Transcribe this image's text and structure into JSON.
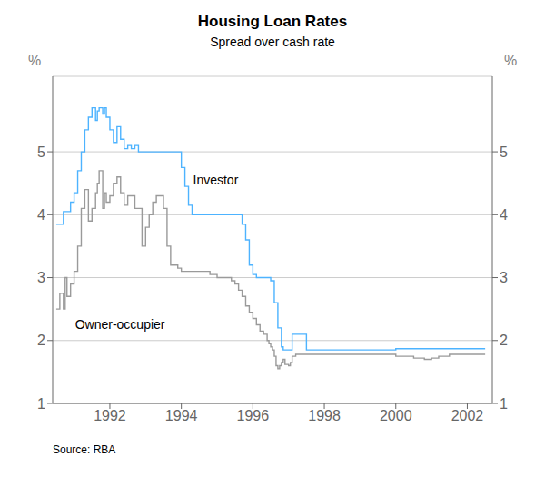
{
  "chart_data": {
    "type": "line",
    "title": "Housing Loan Rates",
    "subtitle": "Spread over cash rate",
    "source": "Source: RBA",
    "ylabel": "%",
    "y2label": "%",
    "xlim": [
      1990.4,
      2002.7
    ],
    "xticks": [
      1992,
      1994,
      1996,
      1998,
      2000,
      2002
    ],
    "ylim": [
      1,
      6.2
    ],
    "yticks": [
      1,
      2,
      3,
      4,
      5
    ],
    "y2lim": [
      1,
      6.2
    ],
    "y2ticks": [
      1,
      2,
      3,
      4,
      5
    ],
    "grid": true,
    "series": [
      {
        "color": "#4db3ff",
        "x": [
          1990.5,
          1990.5,
          1990.7,
          1990.7,
          1990.9,
          1990.9,
          1991.0,
          1991.0,
          1991.1,
          1991.1,
          1991.2,
          1991.2,
          1991.3,
          1991.3,
          1991.4,
          1991.4,
          1991.5,
          1991.5,
          1991.6,
          1991.6,
          1991.65,
          1991.65,
          1991.7,
          1991.7,
          1991.8,
          1991.8,
          1991.85,
          1991.85,
          1991.9,
          1991.9,
          1992.0,
          1992.0,
          1992.1,
          1992.1,
          1992.2,
          1992.2,
          1992.3,
          1992.3,
          1992.4,
          1992.4,
          1992.5,
          1992.5,
          1992.6,
          1992.6,
          1992.7,
          1992.7,
          1992.8,
          1992.8,
          1993.0,
          1993.0,
          1993.1,
          1993.1,
          1993.2,
          1993.2,
          1993.3,
          1993.3,
          1993.5,
          1993.5,
          1993.7,
          1993.7,
          1993.9,
          1993.9,
          1994.0,
          1994.0,
          1994.1,
          1994.1,
          1994.2,
          1994.2,
          1994.3,
          1994.3,
          1994.4,
          1994.4,
          1994.5,
          1994.5,
          1995.7,
          1995.7,
          1995.8,
          1995.8,
          1995.9,
          1995.9,
          1996.0,
          1996.0,
          1996.1,
          1996.1,
          1996.2,
          1996.2,
          1996.4,
          1996.4,
          1996.5,
          1996.5,
          1996.6,
          1996.6,
          1996.7,
          1996.7,
          1996.8,
          1996.8,
          1996.85,
          1996.85,
          1997.0,
          1997.0,
          1997.1,
          1997.1,
          1997.5,
          1997.5,
          1998.0,
          1998.0,
          1999.0,
          1999.0,
          2000.0,
          2000.0,
          2000.5,
          2000.5,
          2001.0,
          2001.0,
          2001.5,
          2001.5,
          2002.0,
          2002.0,
          2002.5
        ],
        "values": [
          3.85,
          3.85,
          3.85,
          4.05,
          4.05,
          4.2,
          4.2,
          4.35,
          4.35,
          4.7,
          4.7,
          5.0,
          5.0,
          5.35,
          5.35,
          5.55,
          5.55,
          5.7,
          5.7,
          5.5,
          5.5,
          5.65,
          5.65,
          5.7,
          5.7,
          5.6,
          5.6,
          5.7,
          5.7,
          5.55,
          5.55,
          5.35,
          5.35,
          5.15,
          5.15,
          5.4,
          5.4,
          5.2,
          5.2,
          5.05,
          5.05,
          5.1,
          5.1,
          5.05,
          5.05,
          5.1,
          5.1,
          5.0,
          5.0,
          5.0,
          5.0,
          5.0,
          5.0,
          5.0,
          5.0,
          5.0,
          5.0,
          5.0,
          5.0,
          5.0,
          5.0,
          5.0,
          5.0,
          4.75,
          4.75,
          4.45,
          4.45,
          4.15,
          4.15,
          4.0,
          4.0,
          4.0,
          4.0,
          4.0,
          4.0,
          3.85,
          3.85,
          3.6,
          3.6,
          3.2,
          3.2,
          3.05,
          3.05,
          3.0,
          3.0,
          3.0,
          3.0,
          3.0,
          3.0,
          2.95,
          2.95,
          2.6,
          2.6,
          2.2,
          2.2,
          1.9,
          1.9,
          1.85,
          1.85,
          1.85,
          1.85,
          2.1,
          2.1,
          1.85,
          1.85,
          1.85,
          1.85,
          1.85,
          1.85,
          1.87,
          1.87,
          1.87,
          1.87,
          1.87,
          1.87,
          1.87,
          1.87,
          1.87,
          1.87
        ]
      },
      {
        "color": "#9a9a9a",
        "x": [
          1990.5,
          1990.5,
          1990.6,
          1990.6,
          1990.7,
          1990.7,
          1990.75,
          1990.75,
          1990.8,
          1990.8,
          1990.9,
          1990.9,
          1991.0,
          1991.0,
          1991.1,
          1991.1,
          1991.2,
          1991.2,
          1991.3,
          1991.3,
          1991.4,
          1991.4,
          1991.5,
          1991.5,
          1991.6,
          1991.6,
          1991.65,
          1991.65,
          1991.7,
          1991.7,
          1991.8,
          1991.8,
          1991.85,
          1991.85,
          1991.9,
          1991.9,
          1992.0,
          1992.0,
          1992.1,
          1992.1,
          1992.2,
          1992.2,
          1992.3,
          1992.3,
          1992.4,
          1992.4,
          1992.5,
          1992.5,
          1992.7,
          1992.7,
          1992.9,
          1992.9,
          1993.0,
          1993.0,
          1993.1,
          1993.1,
          1993.2,
          1993.2,
          1993.3,
          1993.3,
          1993.5,
          1993.5,
          1993.6,
          1993.6,
          1993.7,
          1993.7,
          1993.9,
          1993.9,
          1994.0,
          1994.0,
          1994.2,
          1994.2,
          1994.4,
          1994.4,
          1994.6,
          1994.6,
          1994.8,
          1994.8,
          1995.0,
          1995.0,
          1995.2,
          1995.2,
          1995.4,
          1995.4,
          1995.5,
          1995.5,
          1995.6,
          1995.6,
          1995.7,
          1995.7,
          1995.8,
          1995.8,
          1995.9,
          1995.9,
          1996.0,
          1996.0,
          1996.1,
          1996.1,
          1996.2,
          1996.2,
          1996.3,
          1996.3,
          1996.4,
          1996.4,
          1996.45,
          1996.45,
          1996.5,
          1996.5,
          1996.55,
          1996.55,
          1996.6,
          1996.6,
          1996.65,
          1996.65,
          1996.7,
          1996.7,
          1996.75,
          1996.75,
          1996.8,
          1996.8,
          1996.85,
          1996.85,
          1996.9,
          1996.9,
          1997.0,
          1997.0,
          1997.05,
          1997.05,
          1997.1,
          1997.1,
          1997.2,
          1997.2,
          1997.5,
          1997.5,
          1998.0,
          1998.0,
          1998.5,
          1998.5,
          1999.0,
          1999.0,
          1999.5,
          1999.5,
          2000.0,
          2000.0,
          2000.5,
          2000.5,
          2000.8,
          2000.8,
          2001.0,
          2001.0,
          2001.2,
          2001.2,
          2001.5,
          2001.5,
          2002.0,
          2002.0,
          2002.5
        ],
        "values": [
          2.5,
          2.5,
          2.5,
          2.75,
          2.75,
          2.5,
          2.5,
          3.0,
          3.0,
          2.7,
          2.7,
          2.9,
          2.9,
          3.1,
          3.1,
          3.5,
          3.5,
          4.1,
          4.1,
          4.4,
          4.4,
          3.9,
          3.9,
          4.1,
          4.1,
          4.35,
          4.35,
          4.5,
          4.5,
          4.7,
          4.7,
          4.1,
          4.1,
          4.35,
          4.35,
          4.2,
          4.2,
          4.3,
          4.3,
          4.5,
          4.5,
          4.6,
          4.6,
          4.35,
          4.35,
          4.15,
          4.15,
          4.3,
          4.3,
          4.1,
          4.1,
          3.5,
          3.5,
          3.8,
          3.8,
          4.0,
          4.0,
          4.2,
          4.2,
          4.3,
          4.3,
          4.1,
          4.1,
          3.5,
          3.5,
          3.2,
          3.2,
          3.15,
          3.15,
          3.1,
          3.1,
          3.1,
          3.1,
          3.1,
          3.1,
          3.1,
          3.1,
          3.05,
          3.05,
          3.0,
          3.0,
          3.0,
          3.0,
          2.95,
          2.95,
          2.9,
          2.9,
          2.8,
          2.8,
          2.7,
          2.7,
          2.55,
          2.55,
          2.45,
          2.45,
          2.35,
          2.35,
          2.25,
          2.25,
          2.15,
          2.15,
          2.1,
          2.1,
          2.0,
          2.0,
          1.95,
          1.95,
          1.9,
          1.9,
          1.85,
          1.85,
          1.75,
          1.75,
          1.6,
          1.6,
          1.55,
          1.55,
          1.6,
          1.6,
          1.65,
          1.65,
          1.7,
          1.7,
          1.62,
          1.62,
          1.6,
          1.6,
          1.65,
          1.65,
          1.75,
          1.75,
          1.78,
          1.78,
          1.78,
          1.78,
          1.78,
          1.78,
          1.78,
          1.78,
          1.78,
          1.78,
          1.78,
          1.78,
          1.75,
          1.75,
          1.72,
          1.72,
          1.7,
          1.7,
          1.72,
          1.72,
          1.75,
          1.75,
          1.78,
          1.78,
          1.78,
          1.78
        ]
      }
    ],
    "annotations": [
      {
        "text": "Investor",
        "x": 1994.2,
        "y": 4.55
      },
      {
        "text": "Owner-occupier",
        "x": 1990.9,
        "y": 2.25
      }
    ]
  }
}
